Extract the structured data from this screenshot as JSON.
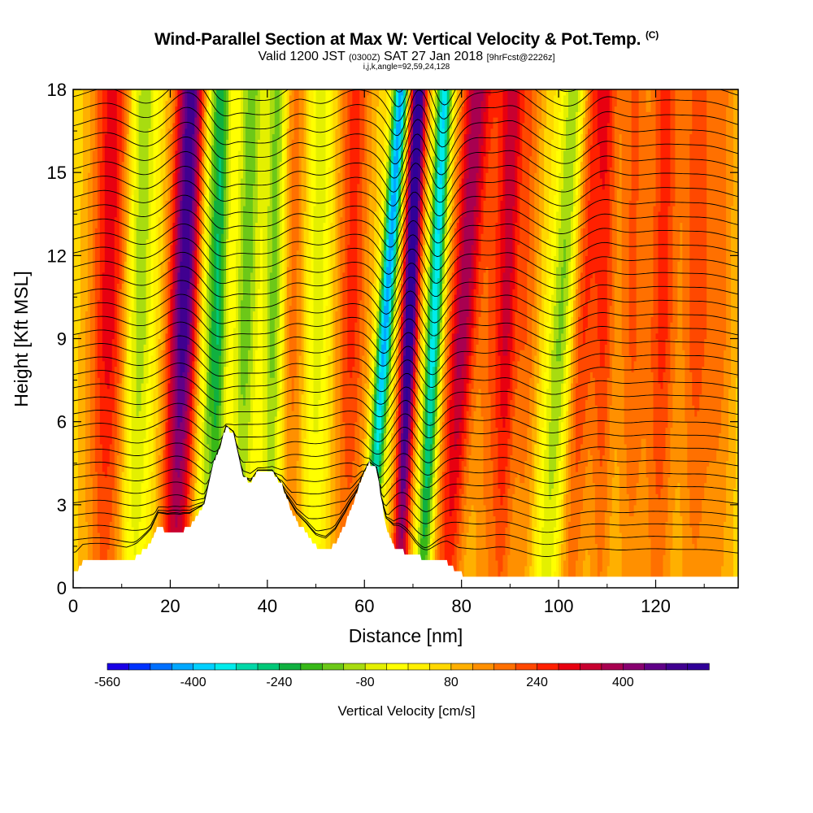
{
  "header": {
    "title_main": "Wind-Parallel Section at Max W: Vertical Velocity & Pot.Temp.",
    "title_mark": "(C)",
    "subtitle_a": "Valid 1200 JST",
    "subtitle_b": "(0300Z)",
    "subtitle_c": "SAT 27 Jan 2018",
    "subtitle_d": "[9hrFcst@2226z]",
    "subtitle_line2": "i,j,k,angle=92,59,24,128"
  },
  "chart_data": {
    "type": "heatmap",
    "xlabel": "Distance [nm]",
    "ylabel": "Height [Kft MSL]",
    "xlim": [
      0,
      137
    ],
    "ylim": [
      0,
      18
    ],
    "xticks": [
      0,
      20,
      40,
      60,
      80,
      100,
      120
    ],
    "yticks": [
      0,
      3,
      6,
      9,
      12,
      15,
      18
    ],
    "colorbar": {
      "title": "Vertical Velocity [cm/s]",
      "labels": [
        -560,
        -400,
        -240,
        -80,
        80,
        240,
        400
      ],
      "min": -560,
      "max": 560,
      "colors": [
        "#1a00e6",
        "#0033ff",
        "#0070ff",
        "#00a8ff",
        "#00d0ff",
        "#00ecec",
        "#00d8a8",
        "#00c878",
        "#10b040",
        "#38b818",
        "#6cc818",
        "#a8dc10",
        "#e4f000",
        "#ffff00",
        "#fff000",
        "#ffd800",
        "#ffb000",
        "#ff9000",
        "#ff7000",
        "#ff4800",
        "#ff2000",
        "#e80010",
        "#c80030",
        "#a80050",
        "#880070",
        "#600088",
        "#400090",
        "#300098"
      ]
    },
    "velocity_bands": [
      {
        "x": 7,
        "w": 250,
        "width": 4,
        "tilt": 0.1
      },
      {
        "x": 13,
        "w": -180,
        "width": 3,
        "tilt": 0.12
      },
      {
        "x": 22,
        "w": 460,
        "width": 3.2,
        "tilt": 0.2
      },
      {
        "x": 27,
        "w": -140,
        "width": 2.2,
        "tilt": 0.1
      },
      {
        "x": 29.5,
        "w": -260,
        "width": 1.8,
        "tilt": 0.1
      },
      {
        "x": 35,
        "w": -200,
        "width": 2.5,
        "tilt": 0.15
      },
      {
        "x": 41,
        "w": -200,
        "width": 2.2,
        "tilt": 0.1
      },
      {
        "x": 45,
        "w": 130,
        "width": 2.5,
        "tilt": 0.05
      },
      {
        "x": 50,
        "w": -120,
        "width": 2.5,
        "tilt": 0.1
      },
      {
        "x": 57,
        "w": 200,
        "width": 3.2,
        "tilt": 0.1
      },
      {
        "x": 63,
        "w": -480,
        "width": 1.6,
        "tilt": 0.38
      },
      {
        "x": 68.5,
        "w": 540,
        "width": 1.7,
        "tilt": 0.22
      },
      {
        "x": 73.5,
        "w": -420,
        "width": 1.6,
        "tilt": 0.25
      },
      {
        "x": 79,
        "w": 330,
        "width": 3,
        "tilt": 0.35
      },
      {
        "x": 86,
        "w": 150,
        "width": 3,
        "tilt": 0.2
      },
      {
        "x": 89,
        "w": 200,
        "width": 2,
        "tilt": 0.15
      },
      {
        "x": 93,
        "w": 140,
        "width": 2.5,
        "tilt": 0.1
      },
      {
        "x": 99.5,
        "w": -200,
        "width": 2.8,
        "tilt": 0.35
      },
      {
        "x": 104,
        "w": 200,
        "width": 2.8,
        "tilt": 0.25
      },
      {
        "x": 109,
        "w": 180,
        "width": 2.2,
        "tilt": 0.1
      },
      {
        "x": 115,
        "w": 150,
        "width": 3,
        "tilt": 0.05
      },
      {
        "x": 121,
        "w": 200,
        "width": 3,
        "tilt": 0.1
      },
      {
        "x": 128,
        "w": 160,
        "width": 3,
        "tilt": 0.05
      },
      {
        "x": 133,
        "w": 120,
        "width": 3,
        "tilt": 0.05
      }
    ],
    "terrain": [
      [
        0,
        0.5
      ],
      [
        2,
        0.9
      ],
      [
        11,
        0.9
      ],
      [
        13,
        1.1
      ],
      [
        16,
        1.6
      ],
      [
        17.5,
        2.2
      ],
      [
        19.5,
        2.0
      ],
      [
        22,
        2.0
      ],
      [
        24,
        2.2
      ],
      [
        25.5,
        2.6
      ],
      [
        27,
        3.0
      ],
      [
        28,
        3.8
      ],
      [
        29,
        4.5
      ],
      [
        30.5,
        5.2
      ],
      [
        31.5,
        5.8
      ],
      [
        33,
        5.6
      ],
      [
        34,
        4.8
      ],
      [
        35,
        4.0
      ],
      [
        36.5,
        3.8
      ],
      [
        38,
        4.2
      ],
      [
        41,
        4.2
      ],
      [
        43,
        3.7
      ],
      [
        44,
        3.2
      ],
      [
        45,
        2.8
      ],
      [
        46,
        2.4
      ],
      [
        48,
        2.0
      ],
      [
        50,
        1.5
      ],
      [
        52,
        1.3
      ],
      [
        54,
        1.6
      ],
      [
        56,
        2.3
      ],
      [
        58,
        3.2
      ],
      [
        59.5,
        4.0
      ],
      [
        61,
        4.5
      ],
      [
        62.5,
        4.3
      ],
      [
        63.5,
        3.2
      ],
      [
        64.5,
        2.1
      ],
      [
        66,
        1.5
      ],
      [
        68,
        1.3
      ],
      [
        70,
        1.2
      ],
      [
        73,
        1.0
      ],
      [
        77,
        0.9
      ],
      [
        80,
        0.5
      ],
      [
        85,
        0.35
      ],
      [
        137,
        0.35
      ]
    ],
    "isentropes": {
      "count": 40,
      "top_compression": 1.0
    }
  }
}
